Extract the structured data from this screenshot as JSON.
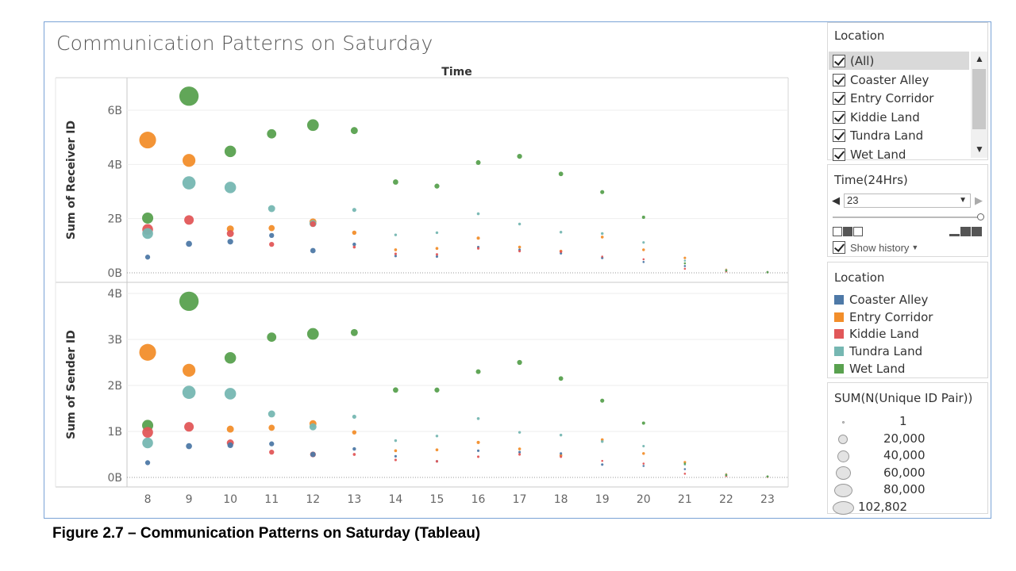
{
  "chart_title": "Communication Patterns on Saturday",
  "caption": "Figure 2.7 – Communication Patterns on Saturday (Tableau)",
  "colors": {
    "Coaster Alley": "#4e79a7",
    "Entry Corridor": "#f28e2b",
    "Kiddie Land": "#e15759",
    "Tundra Land": "#76b7b2",
    "Wet Land": "#59a14f"
  },
  "location_filter": {
    "title": "Location",
    "items": [
      "(All)",
      "Coaster Alley",
      "Entry Corridor",
      "Kiddie Land",
      "Tundra Land",
      "Wet Land"
    ]
  },
  "time_filter": {
    "title": "Time(24Hrs)",
    "value": "23",
    "show_history": "Show history"
  },
  "color_legend": {
    "title": "Location",
    "items": [
      "Coaster Alley",
      "Entry Corridor",
      "Kiddie Land",
      "Tundra Land",
      "Wet Land"
    ]
  },
  "size_legend": {
    "title": "SUM(N(Unique ID Pair))",
    "items": [
      "1",
      "20,000",
      "40,000",
      "60,000",
      "80,000",
      "102,802"
    ]
  },
  "chart_data": {
    "type": "scatter",
    "title": "Communication Patterns on Saturday",
    "column_header": "Time",
    "x": [
      8,
      9,
      10,
      11,
      12,
      13,
      14,
      15,
      16,
      17,
      18,
      19,
      20,
      21,
      22,
      23
    ],
    "x_tick_labels": [
      "8",
      "9",
      "10",
      "11",
      "12",
      "13",
      "14",
      "15",
      "16",
      "17",
      "18",
      "19",
      "20",
      "21",
      "22",
      "23"
    ],
    "size_field": "SUM(N(Unique ID Pair))",
    "panes": [
      {
        "ylabel": "Sum of Receiver ID",
        "ylim": [
          0,
          7.2
        ],
        "yticks": [
          0,
          2,
          4,
          6
        ],
        "ytick_labels": [
          "0B",
          "2B",
          "4B",
          "6B"
        ],
        "series": [
          {
            "name": "Coaster Alley",
            "values": [
              0.58,
              1.07,
              1.15,
              1.38,
              0.82,
              1.05,
              0.62,
              0.6,
              0.95,
              0.85,
              0.72,
              0.55,
              0.4,
              0.25,
              0.08,
              0.02
            ]
          },
          {
            "name": "Entry Corridor",
            "values": [
              4.9,
              4.15,
              1.62,
              1.65,
              1.88,
              1.48,
              0.85,
              0.9,
              1.28,
              0.95,
              0.8,
              1.32,
              0.85,
              0.55,
              0.12,
              0.03
            ]
          },
          {
            "name": "Kiddie Land",
            "values": [
              1.6,
              1.95,
              1.45,
              1.05,
              1.8,
              0.95,
              0.7,
              0.68,
              0.9,
              0.8,
              0.78,
              0.6,
              0.5,
              0.15,
              0.05,
              0.02
            ]
          },
          {
            "name": "Tundra Land",
            "values": [
              1.45,
              3.32,
              3.15,
              2.37,
              1.82,
              2.32,
              1.4,
              1.48,
              2.18,
              1.8,
              1.5,
              1.45,
              1.12,
              0.45,
              0.1,
              0.03
            ]
          },
          {
            "name": "Wet Land",
            "values": [
              2.02,
              6.52,
              4.48,
              5.13,
              5.45,
              5.25,
              3.35,
              3.2,
              4.07,
              4.3,
              3.65,
              2.98,
              2.05,
              0.35,
              0.08,
              0.02
            ]
          }
        ],
        "sizes": [
          [
            6000,
            9000,
            8000,
            6000,
            7000,
            3000,
            1500,
            1500,
            1500,
            1500,
            1500,
            1500,
            1000,
            800,
            300,
            1
          ],
          [
            68000,
            40000,
            12000,
            9000,
            12000,
            4500,
            2000,
            2000,
            2500,
            2000,
            2000,
            2000,
            1800,
            1500,
            500,
            1
          ],
          [
            28000,
            22000,
            12000,
            6000,
            8000,
            2000,
            1500,
            1500,
            1500,
            1500,
            1500,
            1000,
            1000,
            600,
            200,
            1
          ],
          [
            28000,
            42000,
            32000,
            12000,
            12000,
            4000,
            1800,
            1800,
            2000,
            1800,
            1800,
            1800,
            1500,
            800,
            200,
            1
          ],
          [
            30000,
            90000,
            32000,
            21000,
            33000,
            12000,
            7000,
            6000,
            5500,
            6000,
            5000,
            4000,
            2500,
            700,
            200,
            1
          ]
        ]
      },
      {
        "ylabel": "Sum of Sender ID",
        "ylim": [
          0,
          4.2
        ],
        "yticks": [
          0,
          1,
          2,
          3,
          4
        ],
        "ytick_labels": [
          "0B",
          "1B",
          "2B",
          "3B",
          "4B"
        ],
        "series": [
          {
            "name": "Coaster Alley",
            "values": [
              0.32,
              0.68,
              0.7,
              0.73,
              0.5,
              0.62,
              0.46,
              0.35,
              0.58,
              0.55,
              0.52,
              0.28,
              0.25,
              0.18,
              0.05,
              0.02
            ]
          },
          {
            "name": "Entry Corridor",
            "values": [
              2.72,
              2.33,
              1.05,
              1.08,
              1.17,
              0.98,
              0.58,
              0.6,
              0.76,
              0.62,
              0.48,
              0.82,
              0.52,
              0.33,
              0.07,
              0.02
            ]
          },
          {
            "name": "Kiddie Land",
            "values": [
              0.98,
              1.1,
              0.75,
              0.55,
              0.5,
              0.5,
              0.38,
              0.35,
              0.45,
              0.5,
              0.45,
              0.36,
              0.3,
              0.08,
              0.03,
              0.01
            ]
          },
          {
            "name": "Tundra Land",
            "values": [
              0.75,
              1.85,
              1.82,
              1.38,
              1.1,
              1.32,
              0.8,
              0.9,
              1.28,
              0.98,
              0.92,
              0.78,
              0.68,
              0.28,
              0.06,
              0.02
            ]
          },
          {
            "name": "Wet Land",
            "values": [
              1.13,
              3.83,
              2.6,
              3.05,
              3.12,
              3.15,
              1.9,
              1.9,
              2.3,
              2.5,
              2.15,
              1.67,
              1.18,
              0.3,
              0.05,
              0.02
            ]
          }
        ],
        "sizes": [
          [
            6000,
            9000,
            8000,
            6000,
            7000,
            3000,
            1500,
            1500,
            1500,
            1500,
            1500,
            1500,
            1000,
            800,
            300,
            1
          ],
          [
            68000,
            40000,
            12000,
            9000,
            12000,
            4500,
            2000,
            2000,
            2500,
            2000,
            2000,
            2000,
            1800,
            1500,
            500,
            1
          ],
          [
            28000,
            22000,
            12000,
            6000,
            8000,
            2000,
            1500,
            1500,
            1500,
            1500,
            1500,
            1000,
            1000,
            600,
            200,
            1
          ],
          [
            28000,
            42000,
            32000,
            12000,
            12000,
            4000,
            1800,
            1800,
            2000,
            1800,
            1800,
            1800,
            1500,
            800,
            200,
            1
          ],
          [
            30000,
            90000,
            32000,
            21000,
            33000,
            12000,
            7000,
            6000,
            5500,
            6000,
            5000,
            4000,
            2500,
            700,
            200,
            1
          ]
        ]
      }
    ]
  }
}
